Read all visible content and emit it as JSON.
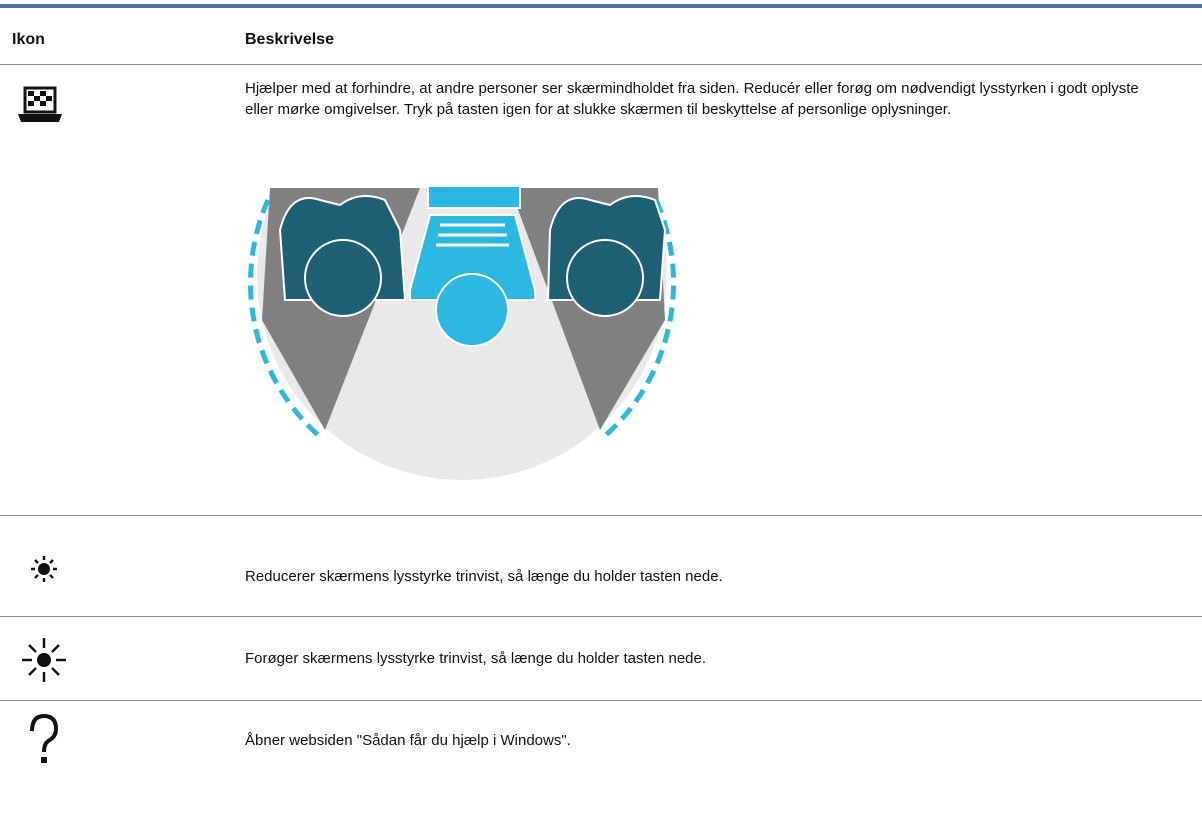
{
  "table": {
    "header": [
      "Ikon",
      "Beskrivelse"
    ],
    "rows": [
      {
        "description": "Hjælper med at forhindre, at andre personer ser skærmindholdet fra siden. Reducér eller forøg om nødvendigt lysstyrken i godt oplyste eller mørke omgivelser. Tryk på tasten igen for at slukke skærmen til beskyttelse af personlige oplysninger."
      },
      {
        "description": "Reducerer skærmens lysstyrke trinvist, så længe du holder tasten nede."
      },
      {
        "description": "Forøger skærmens lysstyrke trinvist, så længe du holder tasten nede."
      },
      {
        "description": "Åbner websiden \"Sådan får du hjælp i Windows\"."
      }
    ]
  }
}
